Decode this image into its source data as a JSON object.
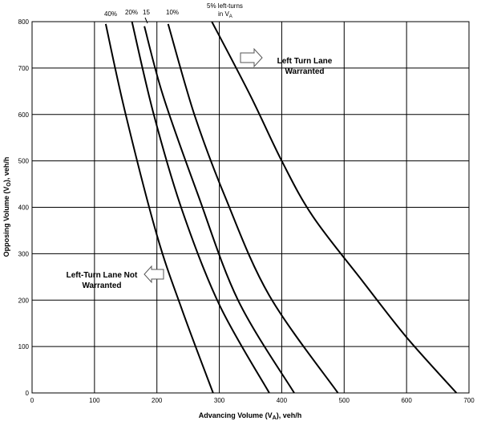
{
  "chart_data": {
    "type": "line",
    "title": "",
    "xlabel_main": "Advancing Volume (V",
    "xlabel_sub": "A",
    "xlabel_end": "), veh/h",
    "ylabel_main": "Opposing Volume (V",
    "ylabel_sub": "O",
    "ylabel_end": "), veh/h",
    "xlim": [
      0,
      700
    ],
    "ylim": [
      0,
      800
    ],
    "xticks": [
      "0",
      "100",
      "200",
      "300",
      "400",
      "500",
      "600",
      "700"
    ],
    "yticks": [
      "0",
      "100",
      "200",
      "300",
      "400",
      "500",
      "600",
      "700",
      "800"
    ],
    "grid": true,
    "series": [
      {
        "name": "40%",
        "points": [
          [
            118,
            795
          ],
          [
            150,
            600
          ],
          [
            200,
            340
          ],
          [
            240,
            180
          ],
          [
            290,
            0
          ]
        ]
      },
      {
        "name": "20%",
        "points": [
          [
            160,
            800
          ],
          [
            195,
            600
          ],
          [
            240,
            395
          ],
          [
            300,
            190
          ],
          [
            380,
            0
          ]
        ]
      },
      {
        "name": "15%",
        "points": [
          [
            180,
            790
          ],
          [
            210,
            640
          ],
          [
            265,
            430
          ],
          [
            330,
            200
          ],
          [
            420,
            0
          ]
        ]
      },
      {
        "name": "10%",
        "points": [
          [
            218,
            795
          ],
          [
            260,
            600
          ],
          [
            310,
            420
          ],
          [
            380,
            210
          ],
          [
            490,
            0
          ]
        ]
      },
      {
        "name": "5% left-turns in V",
        "points": [
          [
            288,
            800
          ],
          [
            350,
            640
          ],
          [
            400,
            500
          ],
          [
            450,
            380
          ],
          [
            530,
            240
          ],
          [
            600,
            120
          ],
          [
            680,
            0
          ]
        ]
      }
    ],
    "curve_labels": [
      {
        "text": "40%"
      },
      {
        "text": "20%"
      },
      {
        "text": "15"
      },
      {
        "text": "10%"
      },
      {
        "text": "5% left-turns"
      },
      {
        "text": "in V",
        "sub": "A"
      }
    ],
    "annotations": [
      {
        "lines": [
          "Left Turn Lane",
          "Warranted"
        ],
        "arrow": "right"
      },
      {
        "lines": [
          "Left-Turn Lane Not",
          "Warranted"
        ],
        "arrow": "left"
      }
    ]
  }
}
